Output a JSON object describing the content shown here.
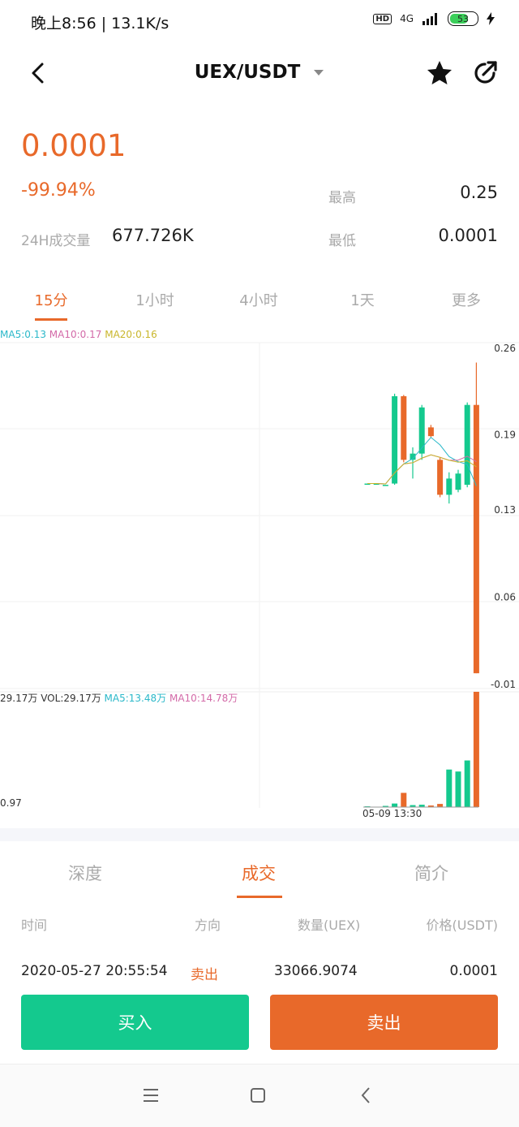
{
  "status_bar": {
    "time": "晚上8:56 | 13.1K/s",
    "hd": "HD",
    "network": "4G",
    "battery": "53"
  },
  "header": {
    "pair": "UEX/USDT",
    "pair_dropdown_icon": "caret-down-icon",
    "back_icon": "chevron-left-icon",
    "favorite_icon": "star-icon",
    "share_icon": "share-icon"
  },
  "ticker": {
    "last_price": "0.0001",
    "change": "-99.94%",
    "volume_label": "24H成交量",
    "volume_value": "677.726K",
    "high_label": "最高",
    "high_value": "0.25",
    "low_label": "最低",
    "low_value": "0.0001"
  },
  "intervals": [
    {
      "label": "15分",
      "active": true
    },
    {
      "label": "1小时",
      "active": false
    },
    {
      "label": "4小时",
      "active": false
    },
    {
      "label": "1天",
      "active": false
    },
    {
      "label": "更多",
      "active": false
    }
  ],
  "chart": {
    "ma5": "MA5:0.13",
    "ma10": "MA10:0.17",
    "ma20": "MA20:0.16",
    "vol_left": "29.17万",
    "vol": "VOL:29.17万",
    "vol_ma5": "MA5:13.48万",
    "vol_ma10": "MA10:14.78万",
    "vol_min_label": "0.97",
    "time_label": "05-09 13:30",
    "colors": {
      "up": "#14c98e",
      "down": "#e8692a",
      "ma5": "#2bb8c9",
      "ma10": "#d36aa8",
      "ma20": "#c9b62b"
    }
  },
  "chart_data": {
    "type": "candlestick",
    "y_ticks": [
      "0.26",
      "0.19",
      "0.13",
      "0.06",
      "-0.01"
    ],
    "ylim": [
      -0.01,
      0.26
    ],
    "candles": [
      {
        "open": 0.151,
        "close": 0.151,
        "high": 0.151,
        "low": 0.151
      },
      {
        "open": 0.151,
        "close": 0.151,
        "high": 0.151,
        "low": 0.151
      },
      {
        "open": 0.15,
        "close": 0.15,
        "high": 0.15,
        "low": 0.15
      },
      {
        "open": 0.151,
        "close": 0.221,
        "high": 0.223,
        "low": 0.15
      },
      {
        "open": 0.221,
        "close": 0.17,
        "high": 0.222,
        "low": 0.168
      },
      {
        "open": 0.17,
        "close": 0.175,
        "high": 0.18,
        "low": 0.155
      },
      {
        "open": 0.175,
        "close": 0.212,
        "high": 0.214,
        "low": 0.17
      },
      {
        "open": 0.196,
        "close": 0.189,
        "high": 0.198,
        "low": 0.188
      },
      {
        "open": 0.17,
        "close": 0.142,
        "high": 0.172,
        "low": 0.14
      },
      {
        "open": 0.142,
        "close": 0.155,
        "high": 0.16,
        "low": 0.135
      },
      {
        "open": 0.146,
        "close": 0.159,
        "high": 0.162,
        "low": 0.144
      },
      {
        "open": 0.15,
        "close": 0.214,
        "high": 0.216,
        "low": 0.148
      },
      {
        "open": 0.214,
        "close": -0.001,
        "high": 0.248,
        "low": -0.001
      }
    ],
    "volumes": [
      0.2,
      0.1,
      0.3,
      0.9,
      3.6,
      0.5,
      0.6,
      0.4,
      0.8,
      9.5,
      9.0,
      11.8,
      29.17
    ]
  },
  "trades": {
    "tabs": [
      {
        "label": "深度",
        "active": false
      },
      {
        "label": "成交",
        "active": true
      },
      {
        "label": "简介",
        "active": false
      }
    ],
    "headers": {
      "time": "时间",
      "side": "方向",
      "amount": "数量(UEX)",
      "price": "价格(USDT)"
    },
    "rows": [
      {
        "time": "2020-05-27 20:55:54",
        "side": "卖出",
        "amount": "33066.9074",
        "price": "0.0001"
      }
    ]
  },
  "actions": {
    "buy": "买入",
    "sell": "卖出"
  },
  "nav": {
    "menu_icon": "menu-icon",
    "home_icon": "home-square-icon",
    "back_icon": "back-triangle-icon"
  }
}
